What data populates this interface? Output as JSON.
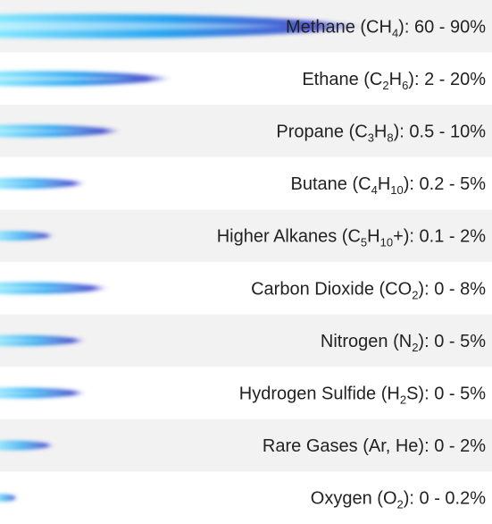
{
  "chart_data": {
    "type": "bar",
    "orientation": "horizontal",
    "title": "",
    "xlabel": "",
    "ylabel": "",
    "grid": false,
    "legend": "none",
    "categories": [
      "Methane (CH4): 60 - 90%",
      "Ethane (C2H6): 2 - 20%",
      "Propane (C3H8): 0.5 - 10%",
      "Butane (C4H10): 0.2 - 5%",
      "Higher Alkanes (C5H10+): 0.1 - 2%",
      "Carbon Dioxide (CO2): 0 - 8%",
      "Nitrogen (N2): 0 - 5%",
      "Hydrogen Sulfide (H2S): 0 - 5%",
      "Rare Gases (Ar, He): 0 - 2%",
      "Oxygen (O2): 0 - 0.2%"
    ],
    "rows": [
      {
        "label": [
          {
            "t": "Methane (CH"
          },
          {
            "t": "4",
            "sub": true
          },
          {
            "t": "): 60 - 90%"
          }
        ],
        "min": 60,
        "max": 90
      },
      {
        "label": [
          {
            "t": "Ethane (C"
          },
          {
            "t": "2",
            "sub": true
          },
          {
            "t": "H"
          },
          {
            "t": "6",
            "sub": true
          },
          {
            "t": "): 2 - 20%"
          }
        ],
        "min": 2,
        "max": 20
      },
      {
        "label": [
          {
            "t": "Propane (C"
          },
          {
            "t": "3",
            "sub": true
          },
          {
            "t": "H"
          },
          {
            "t": "8",
            "sub": true
          },
          {
            "t": "): 0.5 - 10%"
          }
        ],
        "min": 0.5,
        "max": 10
      },
      {
        "label": [
          {
            "t": "Butane (C"
          },
          {
            "t": "4",
            "sub": true
          },
          {
            "t": "H"
          },
          {
            "t": "10",
            "sub": true
          },
          {
            "t": "): 0.2 - 5%"
          }
        ],
        "min": 0.2,
        "max": 5
      },
      {
        "label": [
          {
            "t": "Higher Alkanes (C"
          },
          {
            "t": "5",
            "sub": true
          },
          {
            "t": "H"
          },
          {
            "t": "10",
            "sub": true
          },
          {
            "t": "+): 0.1 - 2%"
          }
        ],
        "min": 0.1,
        "max": 2
      },
      {
        "label": [
          {
            "t": "Carbon Dioxide (CO"
          },
          {
            "t": "2",
            "sub": true
          },
          {
            "t": "): 0 - 8%"
          }
        ],
        "min": 0,
        "max": 8
      },
      {
        "label": [
          {
            "t": "Nitrogen (N"
          },
          {
            "t": "2",
            "sub": true
          },
          {
            "t": "): 0 - 5%"
          }
        ],
        "min": 0,
        "max": 5
      },
      {
        "label": [
          {
            "t": "Hydrogen Sulfide (H"
          },
          {
            "t": "2",
            "sub": true
          },
          {
            "t": "S): 0 - 5%"
          }
        ],
        "min": 0,
        "max": 5
      },
      {
        "label": [
          {
            "t": "Rare Gases (Ar, He): 0 - 2%"
          }
        ],
        "min": 0,
        "max": 2
      },
      {
        "label": [
          {
            "t": "Oxygen (O"
          },
          {
            "t": "2",
            "sub": true
          },
          {
            "t": "): 0 - 0.2%"
          }
        ],
        "min": 0,
        "max": 0.2
      }
    ]
  },
  "colors": {
    "row_stripe": "#f2f2f2",
    "row_plain": "#ffffff",
    "flame_core": "#7fe6ff",
    "flame_mid": "#1ea0f0",
    "flame_edge": "#2f3cc8",
    "label_text": "#222222"
  }
}
